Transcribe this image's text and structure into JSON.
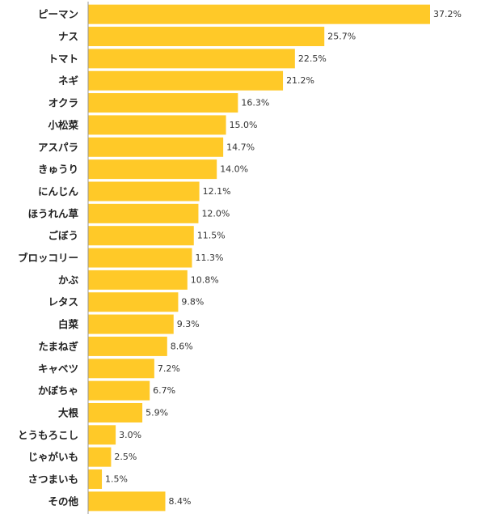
{
  "chart_data": {
    "type": "bar",
    "orientation": "horizontal",
    "categories": [
      "ピーマン",
      "ナス",
      "トマト",
      "ネギ",
      "オクラ",
      "小松菜",
      "アスパラ",
      "きゅうり",
      "にんじん",
      "ほうれん草",
      "ごぼう",
      "ブロッコリー",
      "かぶ",
      "レタス",
      "白菜",
      "たまねぎ",
      "キャベツ",
      "かぼちゃ",
      "大根",
      "とうもろこし",
      "じゃがいも",
      "さつまいも",
      "その他"
    ],
    "values": [
      37.2,
      25.7,
      22.5,
      21.2,
      16.3,
      15.0,
      14.7,
      14.0,
      12.1,
      12.0,
      11.5,
      11.3,
      10.8,
      9.8,
      9.3,
      8.6,
      7.2,
      6.7,
      5.9,
      3.0,
      2.5,
      1.5,
      8.4
    ],
    "value_labels": [
      "37.2%",
      "25.7%",
      "22.5%",
      "21.2%",
      "16.3%",
      "15.0%",
      "14.7%",
      "14.0%",
      "12.1%",
      "12.0%",
      "11.5%",
      "11.3%",
      "10.8%",
      "9.8%",
      "9.3%",
      "8.6%",
      "7.2%",
      "6.7%",
      "5.9%",
      "3.0%",
      "2.5%",
      "1.5%",
      "8.4%"
    ],
    "unit": "%",
    "title": "",
    "xlabel": "",
    "ylabel": "",
    "xlim": [
      0,
      37.2
    ],
    "grid": false,
    "legend": "none",
    "colors": {
      "bar": "#FFC928",
      "axis": "#999999",
      "background": "#ffffff"
    }
  }
}
